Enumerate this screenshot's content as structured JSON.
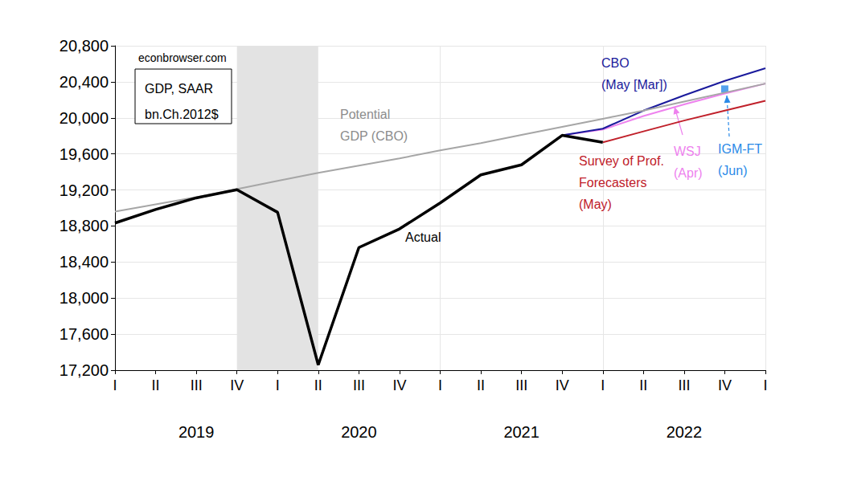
{
  "chart_data": {
    "type": "line",
    "categories": [
      "I",
      "II",
      "III",
      "IV",
      "I",
      "II",
      "III",
      "IV",
      "I",
      "II",
      "III",
      "IV",
      "I",
      "II",
      "III",
      "IV",
      "I"
    ],
    "years": [
      "2019",
      "2020",
      "2021",
      "2022"
    ],
    "shaded": [
      {
        "from": 3,
        "to": 5
      }
    ],
    "ylim": [
      17200,
      20800
    ],
    "yticks": [
      {
        "value": 17200,
        "label": "17,200"
      },
      {
        "value": 17600,
        "label": "17,600"
      },
      {
        "value": 18000,
        "label": "18,000"
      },
      {
        "value": 18400,
        "label": "18,400"
      },
      {
        "value": 18800,
        "label": "18,800"
      },
      {
        "value": 19200,
        "label": "19,200"
      },
      {
        "value": 19600,
        "label": "19,600"
      },
      {
        "value": 20000,
        "label": "20,000"
      },
      {
        "value": 20400,
        "label": "20,400"
      },
      {
        "value": 20800,
        "label": "20,800"
      }
    ],
    "grid": true,
    "annotations": [
      "econbrowser.com",
      "GDP, SAAR\nbn.Ch.2012$"
    ],
    "series": [
      {
        "name": "Actual",
        "color": "#000000",
        "type": "line",
        "values": [
          18833,
          18983,
          19112,
          19202,
          18952,
          17258,
          18561,
          18768,
          19056,
          19368,
          19479,
          19806,
          19728,
          null,
          null,
          null,
          null
        ]
      },
      {
        "name": "Potential\nGDP (CBO)",
        "color": "#a6a6a6",
        "type": "line",
        "values": [
          18960,
          19040,
          19120,
          19210,
          19300,
          19390,
          19470,
          19550,
          19640,
          19720,
          19810,
          19900,
          19990,
          20080,
          20180,
          20280,
          20380
        ]
      },
      {
        "name": "CBO\n(May [Mar])",
        "color": "#1a1a9c",
        "type": "line",
        "values": [
          null,
          null,
          null,
          null,
          null,
          null,
          null,
          null,
          null,
          null,
          null,
          19806,
          19880,
          20080,
          20250,
          20410,
          20550
        ]
      },
      {
        "name": "Survey of Prof.\nForecasters\n(May)",
        "color": "#c0202a",
        "type": "line",
        "values": [
          null,
          null,
          null,
          null,
          null,
          null,
          null,
          null,
          null,
          null,
          null,
          null,
          19728,
          19850,
          19970,
          20080,
          20190
        ]
      },
      {
        "name": "WSJ\n(Apr)",
        "color": "#ee82ee",
        "type": "line",
        "values": [
          null,
          null,
          null,
          null,
          null,
          null,
          null,
          null,
          null,
          null,
          null,
          19806,
          19870,
          20020,
          20150,
          20270,
          20380
        ]
      },
      {
        "name": "IGM-FT\n(Jun)",
        "color": "#2a8ae8",
        "type": "scatter",
        "marker": "square",
        "values": [
          null,
          null,
          null,
          null,
          null,
          null,
          null,
          null,
          null,
          null,
          null,
          null,
          null,
          null,
          null,
          20320,
          null
        ]
      }
    ]
  }
}
